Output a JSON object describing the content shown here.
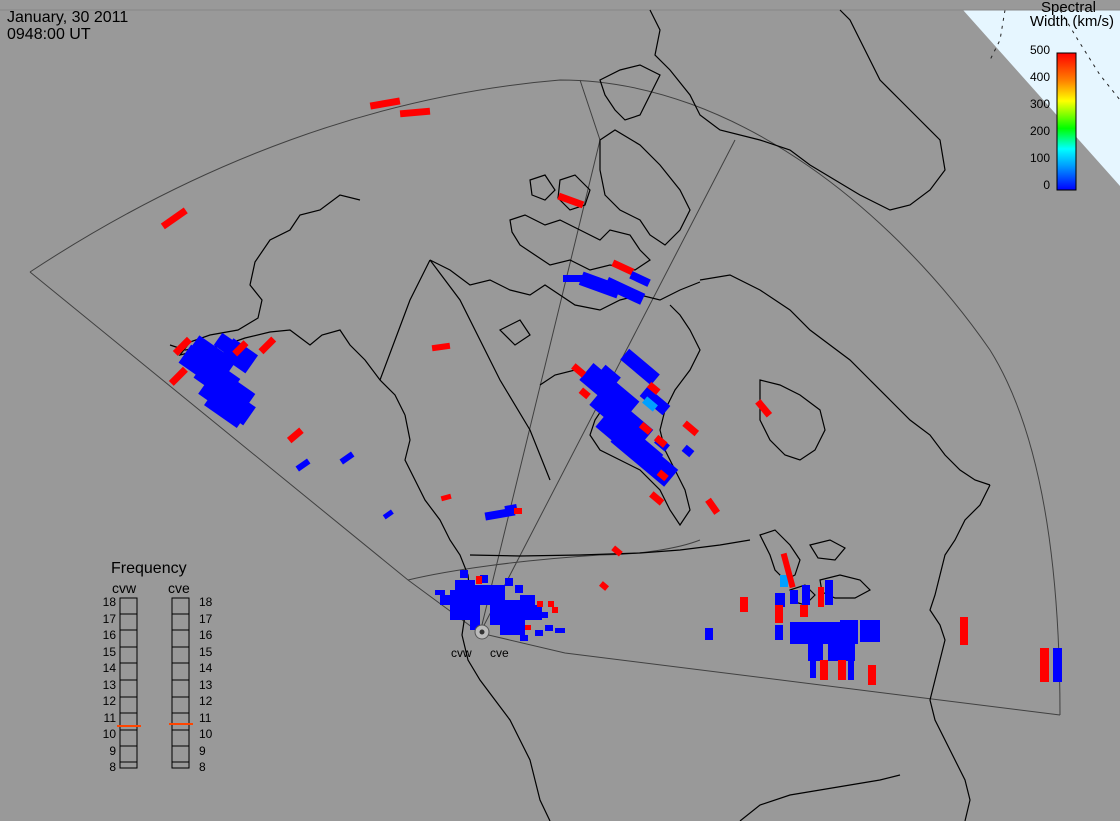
{
  "header": {
    "date": "January, 30 2011",
    "time": "0948:00 UT"
  },
  "colorbar": {
    "title_line1": "Spectral",
    "title_line2": "Width (km/s)",
    "ticks": [
      "500",
      "400",
      "300",
      "200",
      "100",
      "0"
    ],
    "min": 0,
    "max": 500,
    "colors": [
      "#0000ff",
      "#00a0ff",
      "#00ffff",
      "#00ff00",
      "#ffff00",
      "#ff8000",
      "#ff0000"
    ]
  },
  "frequency": {
    "title": "Frequency",
    "radars": [
      {
        "name": "cvw",
        "value_mhz": 10.8
      },
      {
        "name": "cve",
        "value_mhz": 10.9
      }
    ],
    "scale": [
      "18",
      "17",
      "16",
      "15",
      "14",
      "13",
      "12",
      "11",
      "10",
      "9",
      "8"
    ],
    "range": [
      8,
      18
    ]
  },
  "radar_labels": [
    "cvw",
    "cve"
  ],
  "colors": {
    "background": "#999999",
    "low_width": "#0000ff",
    "high_width": "#ff0000",
    "mid_width": "#00a0ff",
    "daylight": "#e6f6ff",
    "coast": "#000000",
    "fov": "#404040",
    "freq_marker": "#ff4500"
  }
}
